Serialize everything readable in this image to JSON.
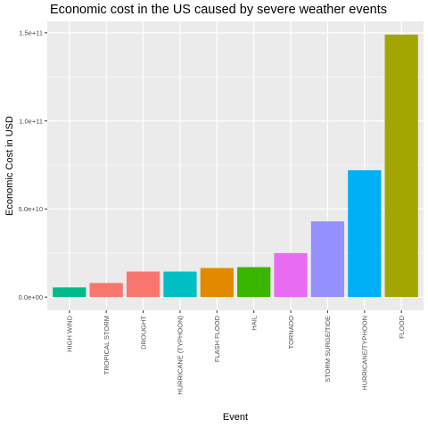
{
  "chart_data": {
    "type": "bar",
    "title": "Economic cost in the US caused by severe weather events",
    "xlabel": "Event",
    "ylabel": "Economic Cost in USD",
    "categories": [
      "HIGH WIND",
      "TROPICAL STORM",
      "DROUGHT",
      "HURRICANE (TYPHOON)",
      "FLASH FLOOD",
      "HAIL",
      "TORNADO",
      "STORM SURGE/TIDE",
      "HURRICANE/TYPHOON",
      "FLOOD"
    ],
    "values": [
      5500000000,
      8000000000,
      14500000000,
      14500000000,
      16500000000,
      17000000000,
      25000000000,
      43000000000,
      72000000000,
      149000000000
    ],
    "colors": [
      "#00BA8B",
      "#F8766D",
      "#F8766D",
      "#00BFC4",
      "#E18A00",
      "#39B600",
      "#E76BF3",
      "#9590FF",
      "#00B0F6",
      "#A3A500"
    ],
    "y_ticks": [
      0,
      50000000000,
      100000000000,
      150000000000
    ],
    "y_tick_labels": [
      "0.0e+00",
      "5.0e+10",
      "1.0e+11",
      "1.5e+11"
    ],
    "ylim": [
      -7500000000,
      156500000000
    ],
    "grid": true,
    "legend": "none",
    "panel_background": "#EBEBEB",
    "grid_color": "#FFFFFF"
  }
}
